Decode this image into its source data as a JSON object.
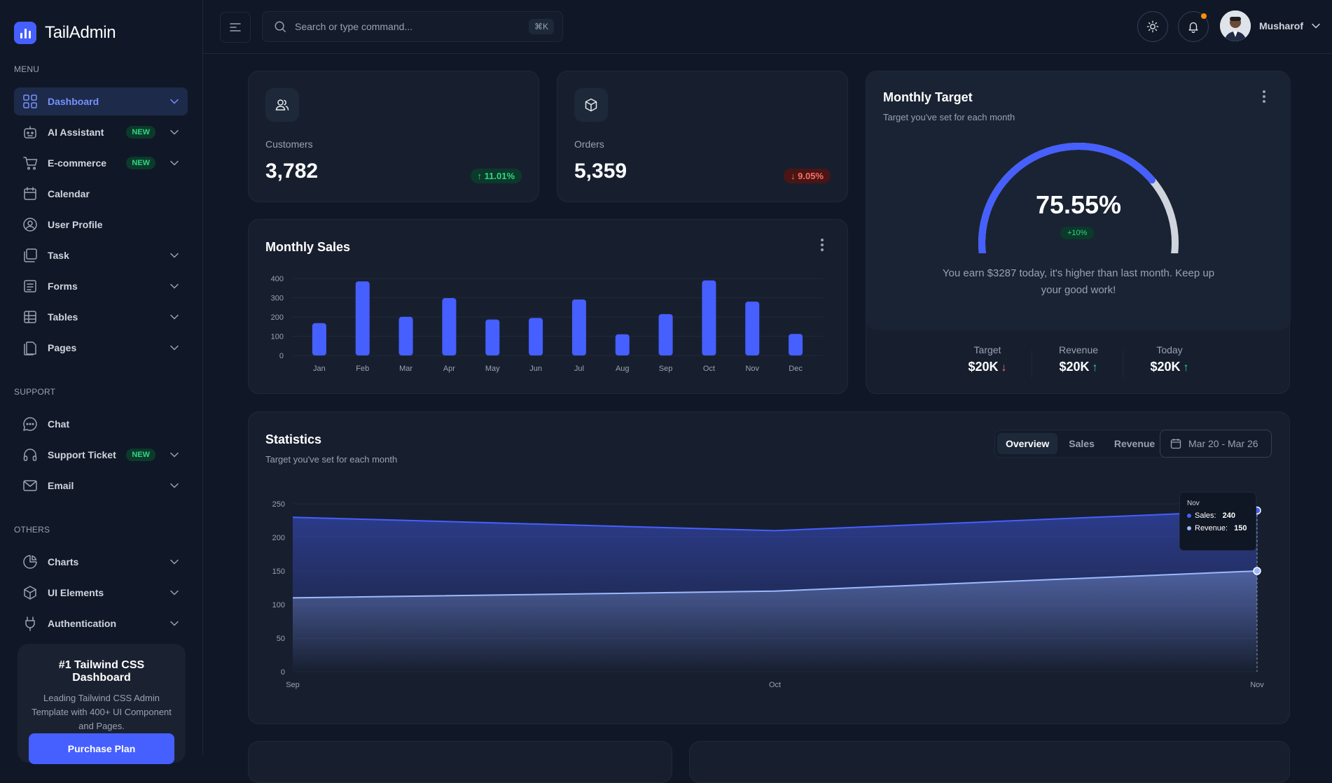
{
  "brand": {
    "name": "TailAdmin"
  },
  "sidebar": {
    "sections": [
      {
        "title": "MENU",
        "items": [
          {
            "label": "Dashboard",
            "icon": "grid-icon",
            "active": true,
            "chevron": true
          },
          {
            "label": "AI Assistant",
            "icon": "robot-icon",
            "badge": "NEW",
            "chevron": true
          },
          {
            "label": "E-commerce",
            "icon": "cart-icon",
            "badge": "NEW",
            "chevron": true
          },
          {
            "label": "Calendar",
            "icon": "calendar-icon"
          },
          {
            "label": "User Profile",
            "icon": "user-circle-icon"
          },
          {
            "label": "Task",
            "icon": "task-icon",
            "chevron": true
          },
          {
            "label": "Forms",
            "icon": "form-icon",
            "chevron": true
          },
          {
            "label": "Tables",
            "icon": "table-icon",
            "chevron": true
          },
          {
            "label": "Pages",
            "icon": "pages-icon",
            "chevron": true
          }
        ]
      },
      {
        "title": "SUPPORT",
        "items": [
          {
            "label": "Chat",
            "icon": "chat-icon"
          },
          {
            "label": "Support Ticket",
            "icon": "headset-icon",
            "badge": "NEW",
            "chevron": true
          },
          {
            "label": "Email",
            "icon": "mail-icon",
            "chevron": true
          }
        ]
      },
      {
        "title": "OTHERS",
        "items": [
          {
            "label": "Charts",
            "icon": "pie-chart-icon",
            "chevron": true
          },
          {
            "label": "UI Elements",
            "icon": "cube-icon",
            "chevron": true
          },
          {
            "label": "Authentication",
            "icon": "plug-icon",
            "chevron": true
          }
        ]
      }
    ],
    "promo": {
      "title": "#1 Tailwind CSS Dashboard",
      "text": "Leading Tailwind CSS Admin Template with 400+ UI Component and Pages.",
      "button": "Purchase Plan"
    }
  },
  "topbar": {
    "search_placeholder": "Search or type command...",
    "shortcut": "⌘K",
    "user_name": "Musharof"
  },
  "metrics": [
    {
      "label": "Customers",
      "value": "3,782",
      "change": "11.01%",
      "direction": "up"
    },
    {
      "label": "Orders",
      "value": "5,359",
      "change": "9.05%",
      "direction": "down"
    }
  ],
  "monthly_sales": {
    "title": "Monthly Sales",
    "chart_data": {
      "type": "bar",
      "categories": [
        "Jan",
        "Feb",
        "Mar",
        "Apr",
        "May",
        "Jun",
        "Jul",
        "Aug",
        "Sep",
        "Oct",
        "Nov",
        "Dec"
      ],
      "values": [
        168,
        385,
        201,
        298,
        187,
        195,
        291,
        110,
        215,
        390,
        280,
        112
      ],
      "ylim": [
        0,
        400
      ],
      "yticks": [
        0,
        100,
        200,
        300,
        400
      ]
    }
  },
  "monthly_target": {
    "title": "Monthly Target",
    "subtitle": "Target you've set for each month",
    "percent": "75.55%",
    "percent_value": 75.55,
    "change": "+10%",
    "message": "You earn $3287 today, it's higher than last month. Keep up your good work!",
    "stats": [
      {
        "label": "Target",
        "value": "$20K",
        "direction": "down"
      },
      {
        "label": "Revenue",
        "value": "$20K",
        "direction": "up"
      },
      {
        "label": "Today",
        "value": "$20K",
        "direction": "up"
      }
    ]
  },
  "statistics": {
    "title": "Statistics",
    "subtitle": "Target you've set for each month",
    "tabs": [
      "Overview",
      "Sales",
      "Revenue"
    ],
    "active_tab": "Overview",
    "date_range": "Mar 20 - Mar 26",
    "tooltip": {
      "title": "Nov",
      "sales_label": "Sales:",
      "sales_value": "240",
      "revenue_label": "Revenue:",
      "revenue_value": "150"
    },
    "chart_data": {
      "type": "area",
      "x": [
        "Sep",
        "Oct",
        "Nov"
      ],
      "series": [
        {
          "name": "Sales",
          "values": [
            230,
            210,
            240
          ],
          "color": "#465fff"
        },
        {
          "name": "Revenue",
          "values": [
            110,
            120,
            150
          ],
          "color": "#9cb9ff"
        }
      ],
      "ylim": [
        0,
        250
      ],
      "yticks": [
        0,
        50,
        100,
        150,
        200,
        250
      ]
    }
  },
  "colors": {
    "accent": "#465fff",
    "success": "#32d583",
    "danger": "#f97066"
  }
}
